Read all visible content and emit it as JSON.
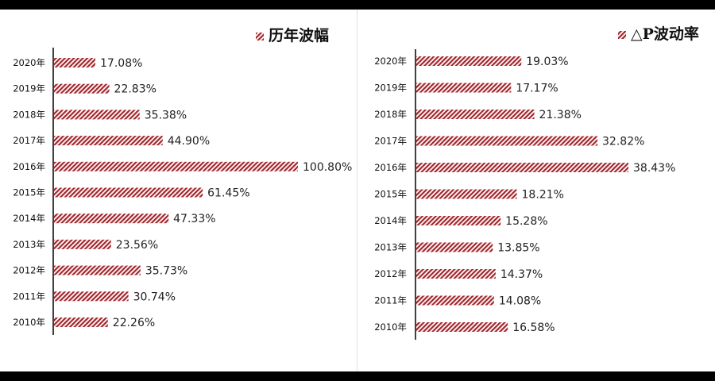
{
  "chart_data": [
    {
      "type": "bar",
      "orientation": "horizontal",
      "legend": "历年波幅",
      "legend_position": "top-right",
      "categories": [
        "2020年",
        "2019年",
        "2018年",
        "2017年",
        "2016年",
        "2015年",
        "2014年",
        "2013年",
        "2012年",
        "2011年",
        "2010年"
      ],
      "values": [
        17.08,
        22.83,
        35.38,
        44.9,
        100.8,
        61.45,
        47.33,
        23.56,
        35.73,
        30.74,
        22.26
      ],
      "labels": [
        "17.08%",
        "22.83%",
        "35.38%",
        "44.90%",
        "100.80%",
        "61.45%",
        "47.33%",
        "23.56%",
        "35.73%",
        "30.74%",
        "22.26%"
      ],
      "xlim": [
        0,
        100.8
      ],
      "unit": "%",
      "bar_color": "#a4262c"
    },
    {
      "type": "bar",
      "orientation": "horizontal",
      "legend": "△P波动率",
      "legend_position": "top-right",
      "categories": [
        "2020年",
        "2019年",
        "2018年",
        "2017年",
        "2016年",
        "2015年",
        "2014年",
        "2013年",
        "2012年",
        "2011年",
        "2010年"
      ],
      "values": [
        19.03,
        17.17,
        21.38,
        32.82,
        38.43,
        18.21,
        15.28,
        13.85,
        14.37,
        14.08,
        16.58
      ],
      "labels": [
        "19.03%",
        "17.17%",
        "21.38%",
        "32.82%",
        "38.43%",
        "18.21%",
        "15.28%",
        "13.85%",
        "14.37%",
        "14.08%",
        "16.58%"
      ],
      "xlim": [
        0,
        38.43
      ],
      "unit": "%",
      "bar_color": "#a4262c"
    }
  ]
}
